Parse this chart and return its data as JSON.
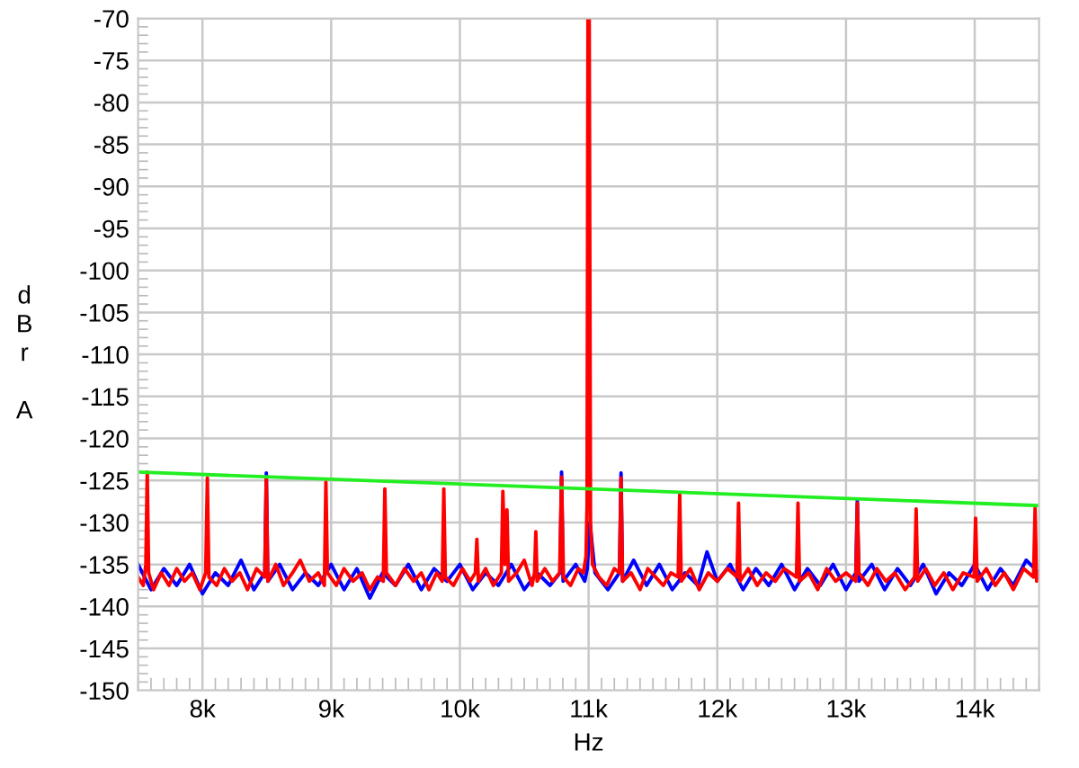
{
  "chart_data": {
    "type": "line",
    "xlabel": "Hz",
    "ylabel": "dBr A",
    "xlim": [
      7500,
      14500
    ],
    "ylim": [
      -150,
      -70
    ],
    "xticks": [
      {
        "value": 8000,
        "label": "8k"
      },
      {
        "value": 9000,
        "label": "9k"
      },
      {
        "value": 10000,
        "label": "10k"
      },
      {
        "value": 11000,
        "label": "11k"
      },
      {
        "value": 12000,
        "label": "12k"
      },
      {
        "value": 13000,
        "label": "13k"
      },
      {
        "value": 14000,
        "label": "14k"
      }
    ],
    "yticks": [
      -150,
      -145,
      -140,
      -135,
      -130,
      -125,
      -120,
      -115,
      -110,
      -105,
      -100,
      -95,
      -90,
      -85,
      -80,
      -75,
      -70
    ],
    "grid": true,
    "legend": false,
    "marker": "none",
    "line_style": "solid",
    "series": [
      {
        "color": "#0000ff",
        "x": [
          7500,
          7600,
          7700,
          7800,
          7900,
          8000,
          8100,
          8200,
          8300,
          8400,
          8484,
          8496,
          8508,
          8600,
          8700,
          8800,
          8900,
          9000,
          9100,
          9200,
          9300,
          9400,
          9500,
          9600,
          9700,
          9800,
          9900,
          10000,
          10100,
          10200,
          10300,
          10400,
          10500,
          10600,
          10700,
          10778,
          10790,
          10802,
          10900,
          10970,
          10990,
          11010,
          11050,
          11150,
          11240,
          11252,
          11264,
          11350,
          11450,
          11550,
          11650,
          11750,
          11850,
          11920,
          12000,
          12100,
          12200,
          12300,
          12400,
          12500,
          12600,
          12700,
          12800,
          12900,
          13000,
          13076,
          13088,
          13100,
          13200,
          13300,
          13400,
          13500,
          13600,
          13700,
          13800,
          13900,
          14000,
          14100,
          14200,
          14300,
          14400,
          14500
        ],
        "values": [
          -135,
          -138,
          -135.5,
          -137.5,
          -135,
          -138.5,
          -136,
          -137.5,
          -134.5,
          -138,
          -136,
          -124.1,
          -137,
          -135,
          -138,
          -136,
          -137.5,
          -135,
          -138,
          -135.5,
          -139,
          -136,
          -137.5,
          -135,
          -138,
          -135.5,
          -137,
          -135,
          -138,
          -136,
          -137.5,
          -135,
          -138,
          -136,
          -137.5,
          -136,
          -124.0,
          -137,
          -135,
          -137,
          -135.5,
          -130,
          -136,
          -138,
          -136,
          -124.1,
          -137,
          -134.5,
          -137.5,
          -135,
          -138,
          -136,
          -137.5,
          -133.5,
          -137,
          -135,
          -138,
          -135.5,
          -137.5,
          -135,
          -138,
          -135.5,
          -137.5,
          -135,
          -138,
          -136,
          -127.3,
          -137,
          -135,
          -138,
          -135.5,
          -137.5,
          -135,
          -138.5,
          -136,
          -137.5,
          -135,
          -138,
          -135.5,
          -137.5,
          -134.5,
          -136
        ]
      },
      {
        "color": "#ff0000",
        "x": [
          7500,
          7540,
          7560,
          7571,
          7582,
          7620,
          7680,
          7740,
          7800,
          7860,
          7920,
          7980,
          8025,
          8038,
          8050,
          8110,
          8170,
          8230,
          8290,
          8350,
          8420,
          8484,
          8496,
          8508,
          8570,
          8630,
          8700,
          8760,
          8830,
          8900,
          8947,
          8959,
          8971,
          9040,
          9100,
          9170,
          9240,
          9300,
          9360,
          9405,
          9417,
          9429,
          9500,
          9570,
          9640,
          9700,
          9760,
          9820,
          9863,
          9875,
          9887,
          9950,
          10020,
          10080,
          10120,
          10132,
          10144,
          10200,
          10260,
          10322,
          10334,
          10350,
          10366,
          10378,
          10440,
          10500,
          10560,
          10580,
          10590,
          10600,
          10660,
          10720,
          10775,
          10790,
          10805,
          10860,
          10920,
          10960,
          10980,
          10988,
          10995,
          11005,
          11015,
          11030,
          11080,
          11140,
          11200,
          11240,
          11252,
          11264,
          11330,
          11400,
          11460,
          11520,
          11580,
          11640,
          11696,
          11708,
          11720,
          11790,
          11860,
          11930,
          12000,
          12080,
          12153,
          12165,
          12177,
          12240,
          12310,
          12380,
          12450,
          12520,
          12615,
          12627,
          12639,
          12710,
          12780,
          12850,
          12920,
          13000,
          13076,
          13088,
          13100,
          13170,
          13240,
          13310,
          13380,
          13460,
          13533,
          13545,
          13557,
          13620,
          13690,
          13760,
          13830,
          13910,
          13995,
          14007,
          14019,
          14090,
          14160,
          14230,
          14300,
          14380,
          14457,
          14469,
          14481,
          14500
        ],
        "values": [
          -136.5,
          -137.5,
          -135,
          -124,
          -136,
          -138,
          -136,
          -137.5,
          -135.5,
          -137,
          -136,
          -138,
          -136,
          -124.7,
          -136.5,
          -137.5,
          -135.5,
          -137,
          -136,
          -138,
          -135.5,
          -136.5,
          -124.7,
          -137,
          -135,
          -137.5,
          -136,
          -134.5,
          -137,
          -136,
          -137.5,
          -125.2,
          -136,
          -137.5,
          -135.5,
          -137,
          -136,
          -138,
          -136.5,
          -137,
          -126,
          -136,
          -137.5,
          -135.5,
          -137,
          -136,
          -138,
          -136,
          -137,
          -126,
          -136.5,
          -137.5,
          -135.5,
          -137,
          -136,
          -132,
          -137,
          -135.5,
          -137.5,
          -136,
          -126.3,
          -135,
          -128.5,
          -137,
          -136,
          -134.5,
          -137.5,
          -136,
          -131.1,
          -137,
          -135.5,
          -137,
          -136,
          -124.6,
          -136.5,
          -137.5,
          -135.5,
          -136,
          -134,
          -127.9,
          -70,
          -70,
          -130,
          -135,
          -136.5,
          -137.5,
          -135.5,
          -136,
          -124.7,
          -137,
          -136,
          -138,
          -135.5,
          -136.5,
          -137.5,
          -136,
          -136.5,
          -126.5,
          -137,
          -135.5,
          -138,
          -136,
          -137,
          -135.5,
          -136.5,
          -127.7,
          -137,
          -135.5,
          -137.5,
          -136,
          -137,
          -135.5,
          -136.5,
          -127.7,
          -137,
          -136,
          -138,
          -135.5,
          -137,
          -136,
          -137,
          -127.7,
          -136,
          -137.5,
          -135.5,
          -137,
          -136,
          -138,
          -136.5,
          -128.4,
          -137,
          -135.5,
          -137.5,
          -136,
          -138,
          -136,
          -136.5,
          -129.5,
          -137,
          -135.5,
          -137.5,
          -136,
          -138,
          -135.5,
          -136.5,
          -128.3,
          -137,
          -136
        ]
      },
      {
        "color": "#22ee22",
        "x": [
          7500,
          14500
        ],
        "values": [
          -124,
          -128
        ]
      }
    ]
  }
}
